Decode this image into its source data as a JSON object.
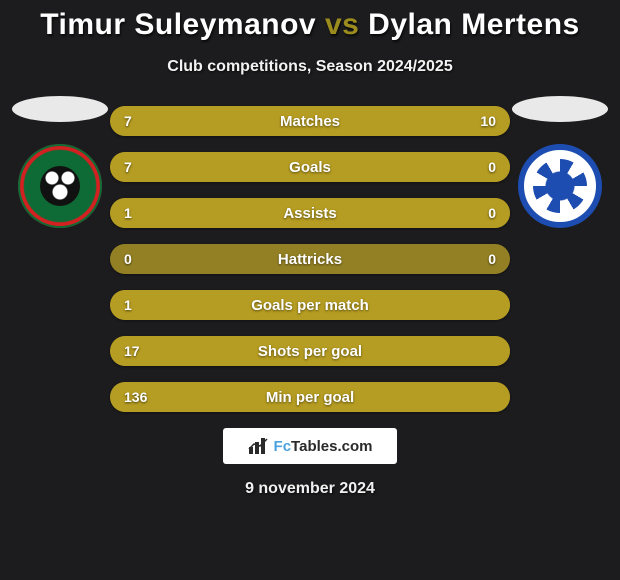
{
  "title": {
    "player1": "Timur Suleymanov",
    "vs": "vs",
    "player2": "Dylan Mertens"
  },
  "subtitle": "Club competitions, Season 2024/2025",
  "chart": {
    "bar_bg": "#938024",
    "bar_fill": "#b59c22",
    "label_color": "#ffffff",
    "label_fontsize": 15,
    "value_fontsize": 14,
    "rows": [
      {
        "label": "Matches",
        "left": "7",
        "right": "10",
        "left_pct": 41,
        "right_pct": 59
      },
      {
        "label": "Goals",
        "left": "7",
        "right": "0",
        "left_pct": 100,
        "right_pct": 0
      },
      {
        "label": "Assists",
        "left": "1",
        "right": "0",
        "left_pct": 100,
        "right_pct": 0
      },
      {
        "label": "Hattricks",
        "left": "0",
        "right": "0",
        "left_pct": 0,
        "right_pct": 0
      },
      {
        "label": "Goals per match",
        "left": "1",
        "right": "",
        "left_pct": 100,
        "right_pct": 0
      },
      {
        "label": "Shots per goal",
        "left": "17",
        "right": "",
        "left_pct": 100,
        "right_pct": 0
      },
      {
        "label": "Min per goal",
        "left": "136",
        "right": "",
        "left_pct": 100,
        "right_pct": 0
      }
    ]
  },
  "footer": {
    "brand_prefix": "Fc",
    "brand_suffix": "Tables.com"
  },
  "date": "9 november 2024",
  "colors": {
    "page_bg": "#1c1c1e",
    "accent": "#9c8c1e",
    "club_left_green": "#0f6b36",
    "club_left_red": "#d32020",
    "club_right_blue": "#1d4db0"
  }
}
